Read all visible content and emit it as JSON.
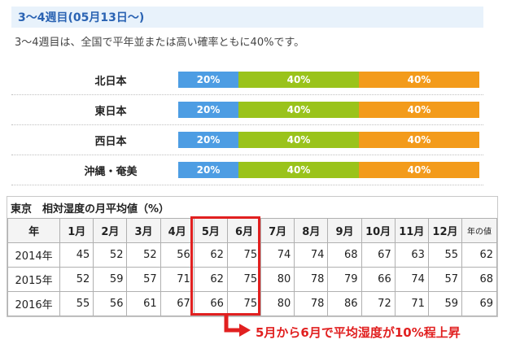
{
  "header": {
    "title": "3～4週目(05月13日～)"
  },
  "subtitle": "3～4週目は、全国で平年並または高い確率ともに40%です。",
  "colors": {
    "low": "#4d9de3",
    "normal": "#9ac31b",
    "high": "#f39b1b",
    "accent": "#e12020"
  },
  "regions": [
    {
      "name": "北日本",
      "low": "20%",
      "normal": "40%",
      "high": "40%",
      "low_frac": 0.2,
      "normal_frac": 0.4,
      "high_frac": 0.4
    },
    {
      "name": "東日本",
      "low": "20%",
      "normal": "40%",
      "high": "40%",
      "low_frac": 0.2,
      "normal_frac": 0.4,
      "high_frac": 0.4
    },
    {
      "name": "西日本",
      "low": "20%",
      "normal": "40%",
      "high": "40%",
      "low_frac": 0.2,
      "normal_frac": 0.4,
      "high_frac": 0.4
    },
    {
      "name": "沖縄・奄美",
      "low": "20%",
      "normal": "40%",
      "high": "40%",
      "low_frac": 0.2,
      "normal_frac": 0.4,
      "high_frac": 0.4
    }
  ],
  "humidity_table": {
    "title": "東京　相対湿度の月平均値（%）",
    "headers": [
      "年",
      "1月",
      "2月",
      "3月",
      "4月",
      "5月",
      "6月",
      "7月",
      "8月",
      "9月",
      "10月",
      "11月",
      "12月",
      "年の値"
    ],
    "rows": [
      [
        "2014年",
        "45",
        "52",
        "52",
        "56",
        "62",
        "75",
        "74",
        "74",
        "68",
        "67",
        "63",
        "55",
        "62"
      ],
      [
        "2015年",
        "52",
        "59",
        "57",
        "71",
        "62",
        "75",
        "80",
        "78",
        "79",
        "66",
        "74",
        "57",
        "68"
      ],
      [
        "2016年",
        "55",
        "56",
        "61",
        "67",
        "66",
        "75",
        "80",
        "78",
        "86",
        "72",
        "71",
        "59",
        "69"
      ]
    ]
  },
  "annotation": {
    "icon": "right-turn-arrow-icon",
    "text": "5月から6月で平均湿度が10%程上昇"
  }
}
